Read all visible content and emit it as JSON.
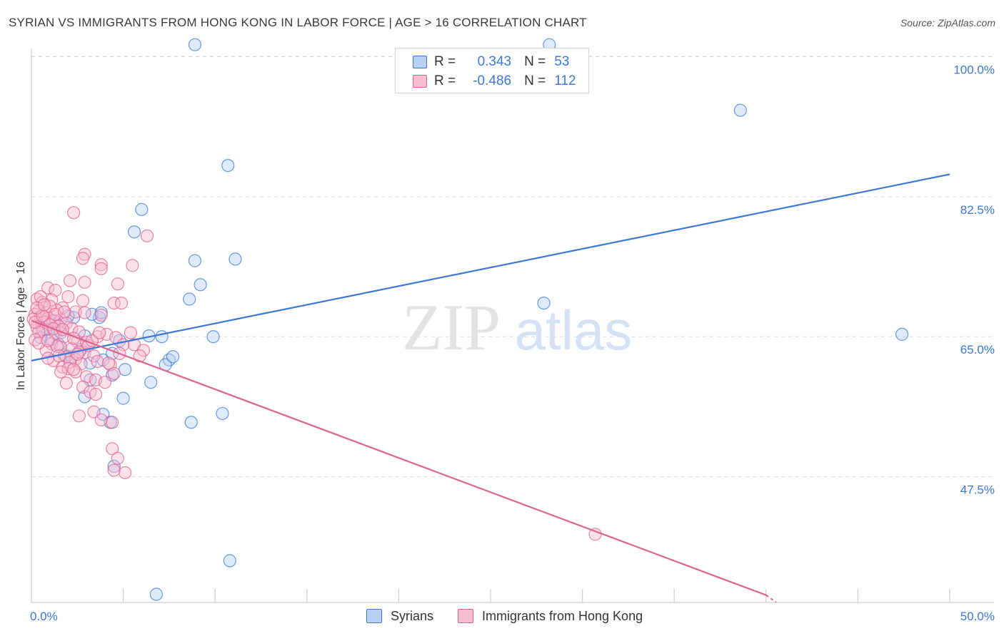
{
  "title": "SYRIAN VS IMMIGRANTS FROM HONG KONG IN LABOR FORCE | AGE > 16 CORRELATION CHART",
  "source": "Source: ZipAtlas.com",
  "watermark": {
    "zip": "ZIP",
    "atlas": "atlas"
  },
  "colors": {
    "blue": "#3b78d6",
    "blue_fill": "#b8d0f3",
    "pink": "#e0608e",
    "pink_fill": "#f7bdd0",
    "grid": "#d9d9d9"
  },
  "legend": {
    "series1": {
      "r_label": "R =",
      "r_value": "0.343",
      "n_label": "N =",
      "n_value": "53"
    },
    "series2": {
      "r_label": "R =",
      "r_value": "-0.486",
      "n_label": "N =",
      "n_value": "112"
    }
  },
  "bottom_legend": {
    "series1": "Syrians",
    "series2": "Immigrants from Hong Kong"
  },
  "chart_data": {
    "type": "scatter",
    "title": "SYRIAN VS IMMIGRANTS FROM HONG KONG IN LABOR FORCE | AGE > 16 CORRELATION CHART",
    "xlabel": "",
    "ylabel": "In Labor Force | Age > 16",
    "xlim": [
      0,
      50
    ],
    "ylim": [
      32,
      100
    ],
    "x_tick_labels": [
      "0.0%",
      "50.0%"
    ],
    "y_ticks": [
      47.5,
      65.0,
      82.5,
      100.0
    ],
    "y_tick_labels": [
      "47.5%",
      "65.0%",
      "82.5%",
      "100.0%"
    ],
    "grid": true,
    "series": [
      {
        "name": "Syrians",
        "color": "#3b78d6",
        "r": 0.343,
        "n": 53,
        "trend": {
          "x": [
            0.0,
            50.0
          ],
          "y": [
            62.0,
            85.3
          ]
        },
        "points": [
          [
            8.9,
            101.5
          ],
          [
            28.2,
            101.5
          ],
          [
            38.6,
            93.3
          ],
          [
            10.7,
            86.4
          ],
          [
            6.0,
            80.9
          ],
          [
            5.6,
            78.1
          ],
          [
            11.1,
            74.7
          ],
          [
            8.9,
            74.5
          ],
          [
            9.2,
            71.5
          ],
          [
            8.6,
            69.7
          ],
          [
            27.9,
            69.2
          ],
          [
            47.4,
            65.3
          ],
          [
            9.9,
            65.0
          ],
          [
            7.1,
            65.0
          ],
          [
            6.4,
            65.1
          ],
          [
            4.8,
            64.5
          ],
          [
            2.9,
            65.1
          ],
          [
            3.7,
            67.4
          ],
          [
            3.3,
            67.8
          ],
          [
            2.3,
            67.4
          ],
          [
            1.4,
            66.5
          ],
          [
            0.6,
            66.3
          ],
          [
            0.9,
            65.6
          ],
          [
            1.1,
            64.7
          ],
          [
            0.5,
            64.9
          ],
          [
            1.6,
            65.5
          ],
          [
            2.7,
            63.4
          ],
          [
            1.8,
            62.7
          ],
          [
            2.2,
            62.5
          ],
          [
            3.2,
            61.7
          ],
          [
            3.9,
            62.1
          ],
          [
            4.4,
            62.9
          ],
          [
            0.8,
            65.9
          ],
          [
            1.3,
            66.9
          ],
          [
            2.0,
            67.6
          ],
          [
            3.8,
            68.0
          ],
          [
            1.5,
            64.0
          ],
          [
            7.5,
            62.1
          ],
          [
            7.3,
            61.5
          ],
          [
            7.7,
            62.5
          ],
          [
            5.1,
            60.9
          ],
          [
            4.4,
            60.2
          ],
          [
            6.5,
            59.3
          ],
          [
            3.2,
            59.6
          ],
          [
            2.9,
            57.5
          ],
          [
            5.0,
            57.3
          ],
          [
            10.4,
            55.4
          ],
          [
            3.9,
            55.3
          ],
          [
            4.3,
            54.3
          ],
          [
            8.7,
            54.3
          ],
          [
            4.5,
            48.8
          ],
          [
            10.8,
            37.0
          ],
          [
            6.8,
            32.8
          ]
        ]
      },
      {
        "name": "Immigrants from Hong Kong",
        "color": "#e0608e",
        "r": -0.486,
        "n": 112,
        "trend": {
          "x": [
            0.0,
            40.0
          ],
          "y": [
            67.0,
            32.7
          ]
        },
        "points": [
          [
            2.3,
            80.5
          ],
          [
            6.3,
            77.6
          ],
          [
            2.9,
            75.3
          ],
          [
            2.8,
            74.8
          ],
          [
            3.8,
            74.0
          ],
          [
            5.5,
            73.9
          ],
          [
            3.8,
            73.5
          ],
          [
            2.1,
            72.0
          ],
          [
            2.9,
            71.8
          ],
          [
            0.9,
            71.1
          ],
          [
            1.3,
            70.8
          ],
          [
            4.7,
            71.6
          ],
          [
            1.1,
            69.6
          ],
          [
            0.3,
            69.7
          ],
          [
            2.8,
            69.5
          ],
          [
            4.5,
            69.2
          ],
          [
            4.9,
            69.2
          ],
          [
            0.6,
            69.3
          ],
          [
            1.7,
            68.6
          ],
          [
            2.4,
            68.1
          ],
          [
            2.9,
            68.0
          ],
          [
            3.8,
            67.7
          ],
          [
            0.4,
            68.2
          ],
          [
            0.8,
            68.0
          ],
          [
            1.4,
            68.3
          ],
          [
            0.2,
            67.8
          ],
          [
            0.5,
            67.5
          ],
          [
            0.9,
            67.3
          ],
          [
            1.2,
            67.0
          ],
          [
            1.6,
            67.1
          ],
          [
            1.9,
            66.7
          ],
          [
            0.1,
            67.2
          ],
          [
            0.7,
            66.8
          ],
          [
            1.0,
            66.5
          ],
          [
            1.5,
            66.3
          ],
          [
            2.2,
            66.0
          ],
          [
            2.6,
            65.6
          ],
          [
            0.3,
            66.2
          ],
          [
            0.6,
            65.9
          ],
          [
            1.3,
            65.4
          ],
          [
            1.8,
            65.0
          ],
          [
            2.5,
            64.4
          ],
          [
            3.0,
            64.3
          ],
          [
            3.6,
            65.0
          ],
          [
            4.1,
            65.3
          ],
          [
            4.6,
            64.9
          ],
          [
            5.0,
            64.0
          ],
          [
            5.4,
            65.5
          ],
          [
            0.4,
            65.6
          ],
          [
            1.1,
            64.1
          ],
          [
            1.6,
            63.7
          ],
          [
            2.2,
            63.5
          ],
          [
            2.9,
            63.0
          ],
          [
            3.4,
            62.6
          ],
          [
            0.2,
            64.6
          ],
          [
            0.8,
            63.3
          ],
          [
            1.4,
            63.8
          ],
          [
            1.9,
            62.5
          ],
          [
            2.4,
            62.2
          ],
          [
            2.7,
            61.6
          ],
          [
            3.6,
            61.9
          ],
          [
            4.3,
            61.5
          ],
          [
            1.2,
            62.0
          ],
          [
            1.7,
            61.2
          ],
          [
            2.1,
            61.8
          ],
          [
            2.4,
            60.6
          ],
          [
            3.0,
            60.0
          ],
          [
            3.5,
            59.6
          ],
          [
            4.0,
            59.3
          ],
          [
            1.9,
            59.2
          ],
          [
            2.8,
            58.7
          ],
          [
            3.2,
            58.1
          ],
          [
            3.5,
            57.8
          ],
          [
            4.2,
            61.7
          ],
          [
            4.5,
            60.4
          ],
          [
            5.6,
            64.0
          ],
          [
            6.1,
            63.3
          ],
          [
            5.9,
            62.6
          ],
          [
            3.4,
            55.6
          ],
          [
            2.6,
            55.1
          ],
          [
            3.8,
            54.6
          ],
          [
            4.4,
            54.3
          ],
          [
            4.4,
            51.0
          ],
          [
            4.7,
            49.8
          ],
          [
            4.5,
            48.3
          ],
          [
            5.1,
            48.0
          ],
          [
            30.7,
            40.3
          ],
          [
            0.5,
            70.0
          ],
          [
            1.0,
            68.8
          ],
          [
            2.0,
            70.0
          ],
          [
            0.2,
            66.8
          ],
          [
            0.4,
            64.2
          ],
          [
            0.9,
            64.5
          ],
          [
            1.2,
            66.0
          ],
          [
            1.7,
            65.9
          ],
          [
            2.3,
            64.8
          ],
          [
            2.6,
            63.1
          ],
          [
            3.1,
            63.9
          ],
          [
            0.6,
            67.6
          ],
          [
            1.3,
            67.8
          ],
          [
            1.8,
            68.1
          ],
          [
            0.3,
            68.6
          ],
          [
            0.7,
            69.0
          ],
          [
            1.5,
            62.6
          ],
          [
            2.0,
            61.0
          ],
          [
            2.5,
            62.8
          ],
          [
            3.3,
            64.5
          ],
          [
            4.8,
            62.9
          ],
          [
            0.9,
            62.3
          ],
          [
            1.6,
            60.6
          ],
          [
            2.3,
            60.9
          ],
          [
            3.7,
            65.5
          ]
        ]
      }
    ]
  }
}
